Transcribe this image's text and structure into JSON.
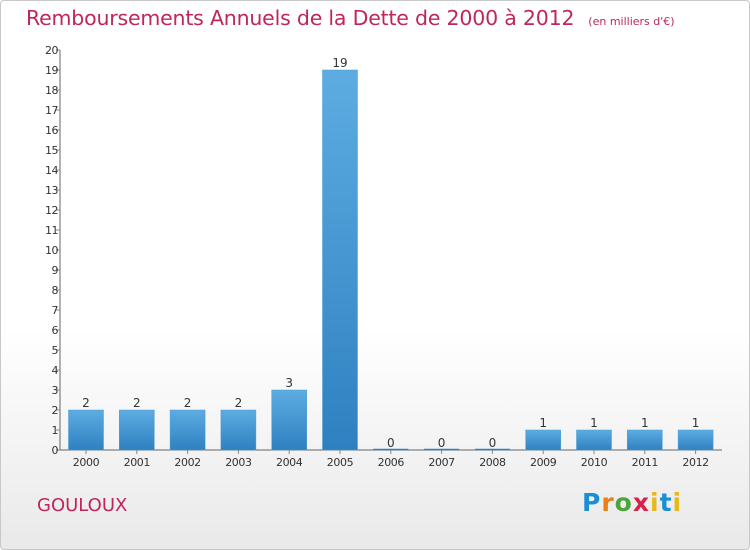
{
  "header": {
    "title": "Remboursements Annuels de la Dette de 2000 à 2012",
    "unit": "(en milliers d'€)"
  },
  "footer": {
    "place": "GOULOUX",
    "brand": "Proxiti"
  },
  "colors": {
    "title": "#c0255d",
    "bar_light": "#5dade2",
    "bar_dark": "#2e80c0",
    "axis": "#666666",
    "grid": "#888888"
  },
  "chart_data": {
    "type": "bar",
    "title": "Remboursements Annuels de la Dette de 2000 à 2012",
    "xlabel": "",
    "ylabel": "(en milliers d'€)",
    "categories": [
      "2000",
      "2001",
      "2002",
      "2003",
      "2004",
      "2005",
      "2006",
      "2007",
      "2008",
      "2009",
      "2010",
      "2011",
      "2012"
    ],
    "values": [
      2,
      2,
      2,
      2,
      3,
      19,
      0,
      0,
      0,
      1,
      1,
      1,
      1
    ],
    "ylim": [
      0,
      20
    ],
    "yticks": [
      "0",
      "1",
      "2",
      "3",
      "4",
      "5",
      "6",
      "7",
      "8",
      "9",
      "10",
      "11",
      "12",
      "13",
      "14",
      "15",
      "16",
      "17",
      "18",
      "19",
      "20"
    ],
    "grid": false
  }
}
